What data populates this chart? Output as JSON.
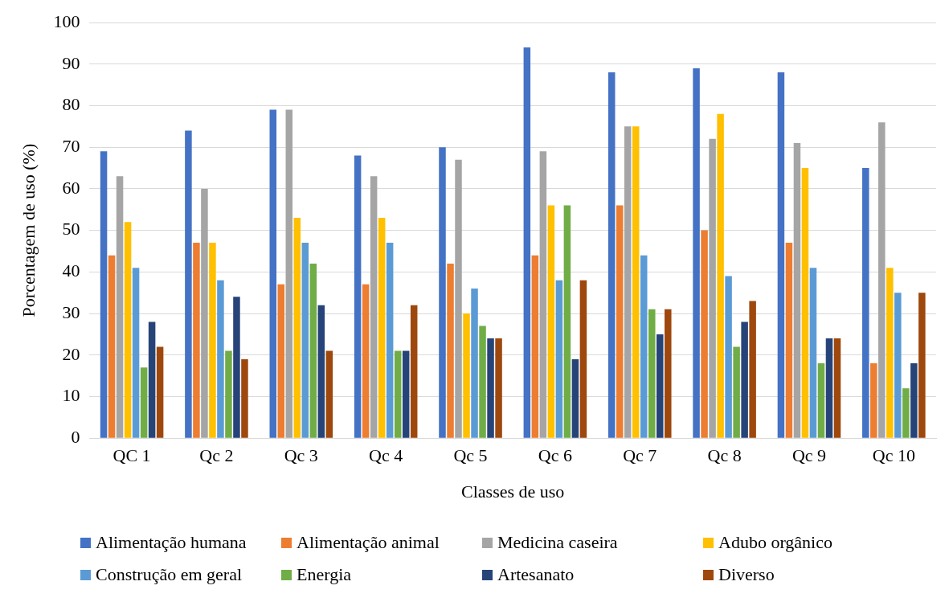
{
  "chart_data": {
    "type": "bar",
    "xlabel": "Classes de uso",
    "ylabel": "Porcentagem de uso (%)",
    "categories": [
      "QC 1",
      "Qc 2",
      "Qc 3",
      "Qc 4",
      "Qc 5",
      "Qc 6",
      "Qc 7",
      "Qc 8",
      "Qc 9",
      "Qc 10"
    ],
    "series": [
      {
        "name": "Alimentação humana",
        "color": "#4472c4",
        "values": [
          69,
          74,
          79,
          68,
          70,
          94,
          88,
          89,
          88,
          65
        ]
      },
      {
        "name": "Alimentação animal",
        "color": "#ed7d31",
        "values": [
          44,
          47,
          37,
          37,
          42,
          44,
          56,
          50,
          47,
          18
        ]
      },
      {
        "name": "Medicina caseira",
        "color": "#a5a5a5",
        "values": [
          63,
          60,
          79,
          63,
          67,
          69,
          75,
          72,
          71,
          76
        ]
      },
      {
        "name": "Adubo orgânico",
        "color": "#ffc000",
        "values": [
          52,
          47,
          53,
          53,
          30,
          56,
          75,
          78,
          65,
          41
        ]
      },
      {
        "name": "Construção em geral",
        "color": "#5b9bd5",
        "values": [
          41,
          38,
          47,
          47,
          36,
          38,
          44,
          39,
          41,
          35
        ]
      },
      {
        "name": "Energia",
        "color": "#70ad47",
        "values": [
          17,
          21,
          42,
          21,
          27,
          56,
          31,
          22,
          18,
          12
        ]
      },
      {
        "name": "Artesanato",
        "color": "#264478",
        "values": [
          28,
          34,
          32,
          21,
          24,
          19,
          25,
          28,
          24,
          18
        ]
      },
      {
        "name": "Diverso",
        "color": "#9e480e",
        "values": [
          22,
          19,
          21,
          32,
          24,
          38,
          31,
          33,
          24,
          35
        ]
      }
    ],
    "ylim": [
      0,
      100
    ],
    "yticks": [
      0,
      10,
      20,
      30,
      40,
      50,
      60,
      70,
      80,
      90,
      100
    ],
    "grid": "y",
    "legend": "bottom"
  }
}
